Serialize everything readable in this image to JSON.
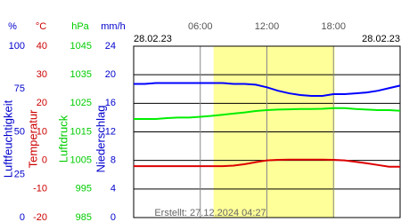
{
  "chart_data": {
    "type": "line",
    "date_left": "28.02.23",
    "date_right": "28.02.23",
    "footer": "Erstellt: 27.12.2024 04:27",
    "xlim": [
      0,
      24
    ],
    "xticks": [
      {
        "value": 6,
        "label": "06:00"
      },
      {
        "value": 12,
        "label": "12:00"
      },
      {
        "value": 18,
        "label": "18:00"
      }
    ],
    "daylight": [
      7.2,
      18.1
    ],
    "daylight_color": "#ffff99",
    "x": [
      0,
      1,
      2,
      3,
      4,
      5,
      6,
      7,
      8,
      9,
      10,
      11,
      12,
      13,
      14,
      15,
      16,
      17,
      18,
      19,
      20,
      21,
      22,
      23,
      24
    ],
    "axes": [
      {
        "unit": "%",
        "label": "Luftfeuchtigkeit",
        "color": "#0000cc",
        "ylim": [
          0,
          100
        ],
        "yticks": [
          0,
          25,
          50,
          75,
          100
        ]
      },
      {
        "unit": "°C",
        "label": "Temperatur",
        "color": "#cc0000",
        "ylim": [
          -20,
          40
        ],
        "yticks": [
          -20,
          -10,
          0,
          10,
          20,
          30,
          40
        ]
      },
      {
        "unit": "hPa",
        "label": "Luftdruck",
        "color": "#00cc00",
        "ylim": [
          985,
          1045
        ],
        "yticks": [
          985,
          995,
          1005,
          1015,
          1025,
          1035,
          1045
        ]
      },
      {
        "unit": "mm/h",
        "label": "Niederschlag",
        "color": "#0000cc",
        "ylim": [
          0,
          24
        ],
        "yticks": [
          0,
          4,
          8,
          12,
          16,
          20,
          24
        ]
      }
    ],
    "series": [
      {
        "axis": 0,
        "color": "#0000ff",
        "values": [
          78,
          78,
          78.5,
          78.5,
          78.5,
          78.5,
          78.5,
          78.5,
          78.5,
          78,
          78,
          77.5,
          76,
          74,
          72.5,
          71.5,
          71,
          71,
          72,
          72,
          72.5,
          73,
          74,
          75.5,
          77
        ]
      },
      {
        "axis": 2,
        "color": "#00ee00",
        "values": [
          1019.5,
          1019.5,
          1019.5,
          1019.8,
          1020,
          1020,
          1020.3,
          1020.6,
          1021,
          1021.4,
          1021.8,
          1022.3,
          1022.6,
          1022.8,
          1022.9,
          1023,
          1023,
          1023.1,
          1023.3,
          1023.3,
          1023,
          1022.8,
          1022.6,
          1022.6,
          1022.4
        ]
      },
      {
        "axis": 1,
        "color": "#dd0000",
        "values": [
          -2,
          -2,
          -2,
          -2,
          -2,
          -2,
          -2,
          -2,
          -2,
          -1.8,
          -1.3,
          -0.6,
          0,
          0.2,
          0.3,
          0.3,
          0.3,
          0.3,
          0.2,
          0,
          -0.5,
          -1,
          -1.6,
          -2.2,
          -2.2
        ]
      }
    ]
  }
}
